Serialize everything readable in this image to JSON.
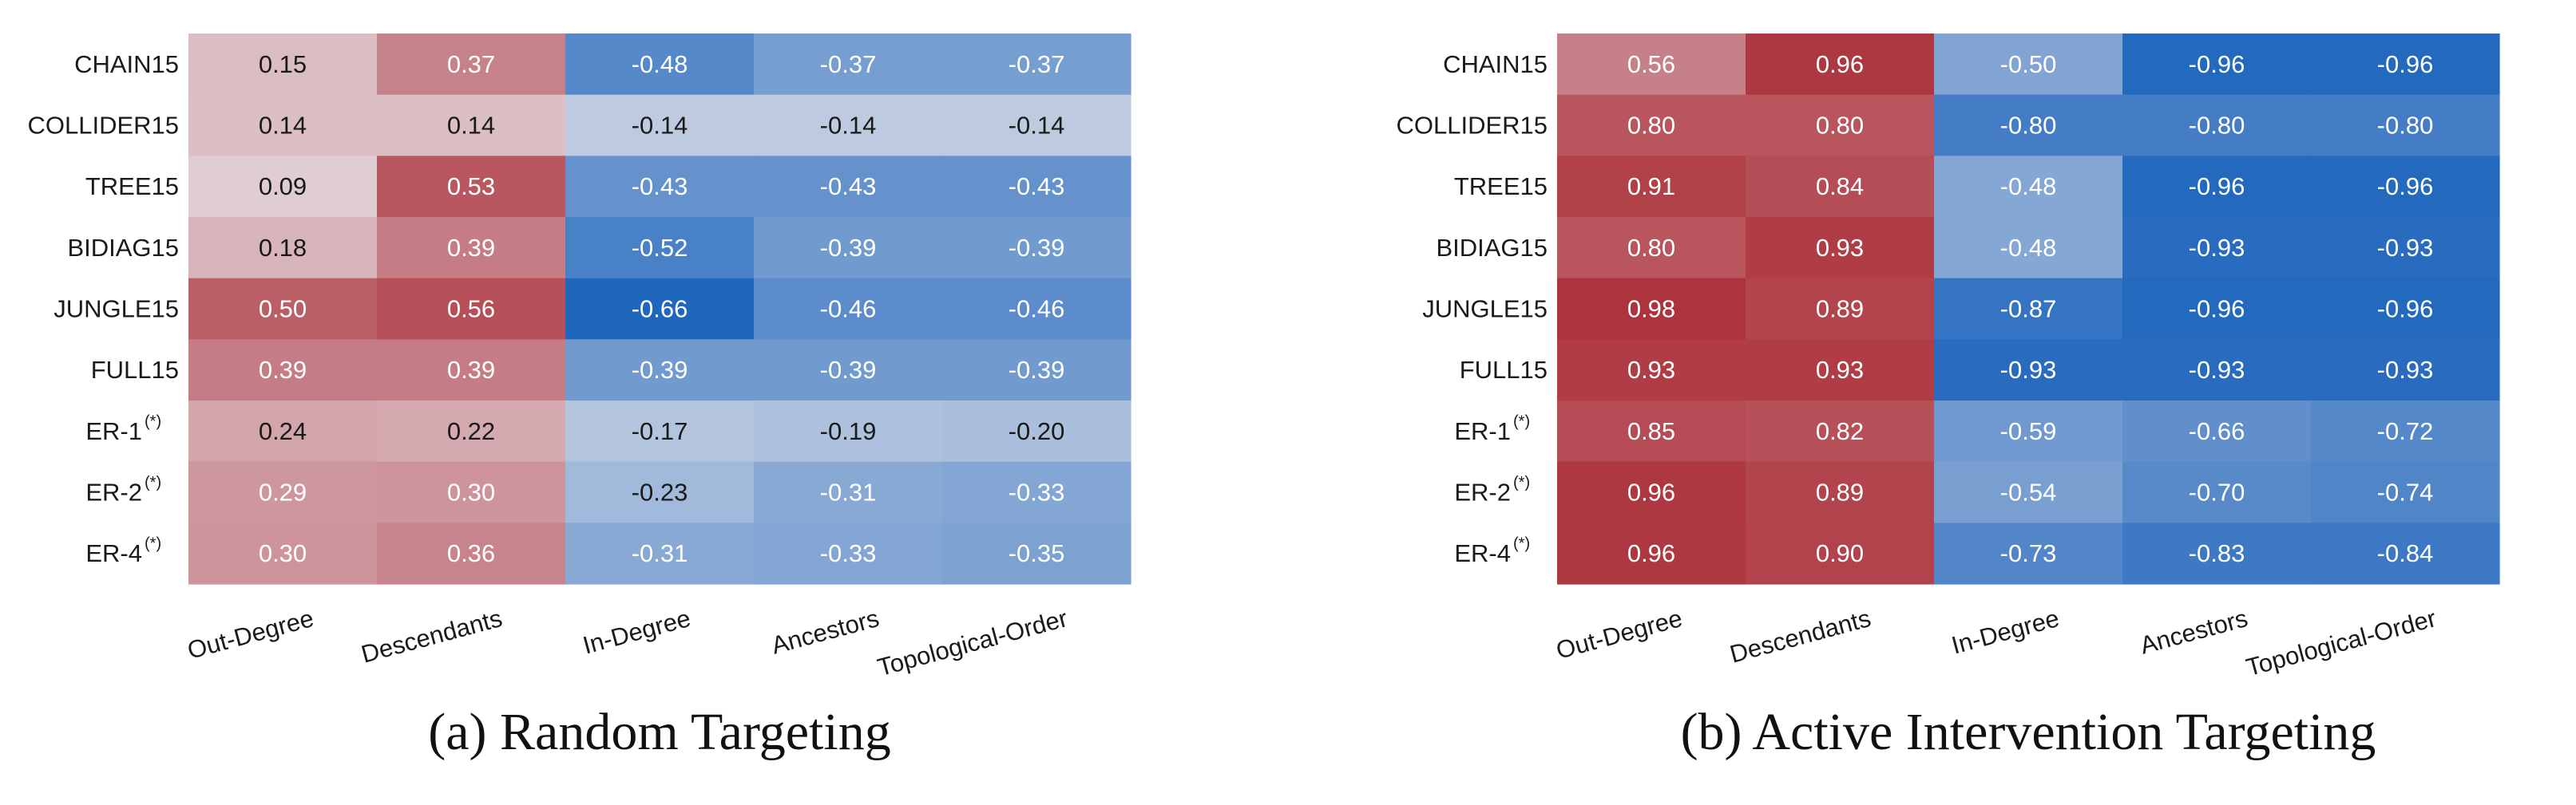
{
  "colors": {
    "negative_extreme": "#1f66bd",
    "neutral": "#e7e5ea",
    "positive_extreme": "#ad343d",
    "dark_text": "#1a1a1a",
    "light_text": "#ffffff"
  },
  "chart_data": [
    {
      "type": "heatmap",
      "caption": "(a) Random Targeting",
      "rows": [
        "CHAIN15",
        "COLLIDER15",
        "TREE15",
        "BIDIAG15",
        "JUNGLE15",
        "FULL15",
        "ER-1",
        "ER-2",
        "ER-4"
      ],
      "row_superscripts": [
        "",
        "",
        "",
        "",
        "",
        "",
        "(*)",
        "(*)",
        "(*)"
      ],
      "columns": [
        "Out-Degree",
        "Descendants",
        "In-Degree",
        "Ancestors",
        "Topological-Order"
      ],
      "values": [
        [
          0.15,
          0.37,
          -0.48,
          -0.37,
          -0.37
        ],
        [
          0.14,
          0.14,
          -0.14,
          -0.14,
          -0.14
        ],
        [
          0.09,
          0.53,
          -0.43,
          -0.43,
          -0.43
        ],
        [
          0.18,
          0.39,
          -0.52,
          -0.39,
          -0.39
        ],
        [
          0.5,
          0.56,
          -0.66,
          -0.46,
          -0.46
        ],
        [
          0.39,
          0.39,
          -0.39,
          -0.39,
          -0.39
        ],
        [
          0.24,
          0.22,
          -0.17,
          -0.19,
          -0.2
        ],
        [
          0.29,
          0.3,
          -0.23,
          -0.31,
          -0.33
        ],
        [
          0.3,
          0.36,
          -0.31,
          -0.33,
          -0.35
        ]
      ],
      "value_labels": [
        [
          "0.15",
          "0.37",
          "-0.48",
          "-0.37",
          "-0.37"
        ],
        [
          "0.14",
          "0.14",
          "-0.14",
          "-0.14",
          "-0.14"
        ],
        [
          "0.09",
          "0.53",
          "-0.43",
          "-0.43",
          "-0.43"
        ],
        [
          "0.18",
          "0.39",
          "-0.52",
          "-0.39",
          "-0.39"
        ],
        [
          "0.50",
          "0.56",
          "-0.66",
          "-0.46",
          "-0.46"
        ],
        [
          "0.39",
          "0.39",
          "-0.39",
          "-0.39",
          "-0.39"
        ],
        [
          "0.24",
          "0.22",
          "-0.17",
          "-0.19",
          "-0.20"
        ],
        [
          "0.29",
          "0.30",
          "-0.23",
          "-0.31",
          "-0.33"
        ],
        [
          "0.30",
          "0.36",
          "-0.31",
          "-0.33",
          "-0.35"
        ]
      ],
      "color_limit": 0.66
    },
    {
      "type": "heatmap",
      "caption": "(b) Active Intervention Targeting",
      "rows": [
        "CHAIN15",
        "COLLIDER15",
        "TREE15",
        "BIDIAG15",
        "JUNGLE15",
        "FULL15",
        "ER-1",
        "ER-2",
        "ER-4"
      ],
      "row_superscripts": [
        "",
        "",
        "",
        "",
        "",
        "",
        "(*)",
        "(*)",
        "(*)"
      ],
      "columns": [
        "Out-Degree",
        "Descendants",
        "In-Degree",
        "Ancestors",
        "Topological-Order"
      ],
      "values": [
        [
          0.56,
          0.96,
          -0.5,
          -0.96,
          -0.96
        ],
        [
          0.8,
          0.8,
          -0.8,
          -0.8,
          -0.8
        ],
        [
          0.91,
          0.84,
          -0.48,
          -0.96,
          -0.96
        ],
        [
          0.8,
          0.93,
          -0.48,
          -0.93,
          -0.93
        ],
        [
          0.98,
          0.89,
          -0.87,
          -0.96,
          -0.96
        ],
        [
          0.93,
          0.93,
          -0.93,
          -0.93,
          -0.93
        ],
        [
          0.85,
          0.82,
          -0.59,
          -0.66,
          -0.72
        ],
        [
          0.96,
          0.89,
          -0.54,
          -0.7,
          -0.74
        ],
        [
          0.96,
          0.9,
          -0.73,
          -0.83,
          -0.84
        ]
      ],
      "value_labels": [
        [
          "0.56",
          "0.96",
          "-0.50",
          "-0.96",
          "-0.96"
        ],
        [
          "0.80",
          "0.80",
          "-0.80",
          "-0.80",
          "-0.80"
        ],
        [
          "0.91",
          "0.84",
          "-0.48",
          "-0.96",
          "-0.96"
        ],
        [
          "0.80",
          "0.93",
          "-0.48",
          "-0.93",
          "-0.93"
        ],
        [
          "0.98",
          "0.89",
          "-0.87",
          "-0.96",
          "-0.96"
        ],
        [
          "0.93",
          "0.93",
          "-0.93",
          "-0.93",
          "-0.93"
        ],
        [
          "0.85",
          "0.82",
          "-0.59",
          "-0.66",
          "-0.72"
        ],
        [
          "0.96",
          "0.89",
          "-0.54",
          "-0.70",
          "-0.74"
        ],
        [
          "0.96",
          "0.90",
          "-0.73",
          "-0.83",
          "-0.84"
        ]
      ],
      "color_limit": 0.98
    }
  ]
}
